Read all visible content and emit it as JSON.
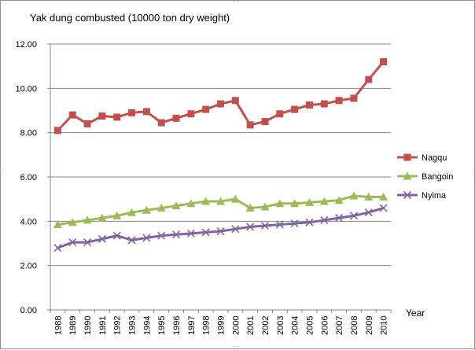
{
  "chart_data": {
    "type": "line",
    "title": "Yak dung combusted (10000 ton dry weight)",
    "xlabel": "Year",
    "ylabel": "",
    "ylim": [
      0,
      12
    ],
    "yticks": [
      "0.00",
      "2.00",
      "4.00",
      "6.00",
      "8.00",
      "10.00",
      "12.00"
    ],
    "ytick_values": [
      0,
      2,
      4,
      6,
      8,
      10,
      12
    ],
    "grid": "horizontal",
    "legend_position": "right",
    "categories": [
      "1988",
      "1989",
      "1990",
      "1991",
      "1992",
      "1993",
      "1994",
      "1995",
      "1996",
      "1997",
      "1998",
      "1999",
      "2000",
      "2001",
      "2002",
      "2003",
      "2004",
      "2005",
      "2006",
      "2007",
      "2008",
      "2009",
      "2010"
    ],
    "series": [
      {
        "name": "Nagqu",
        "color": "#c0504d",
        "marker": "square",
        "values": [
          8.1,
          8.8,
          8.4,
          8.75,
          8.7,
          8.9,
          8.95,
          8.45,
          8.65,
          8.85,
          9.05,
          9.3,
          9.45,
          8.35,
          8.5,
          8.85,
          9.05,
          9.25,
          9.3,
          9.45,
          9.55,
          10.4,
          11.2
        ]
      },
      {
        "name": "Bangoin",
        "color": "#9bbb59",
        "marker": "triangle",
        "values": [
          3.85,
          3.95,
          4.05,
          4.15,
          4.25,
          4.4,
          4.5,
          4.6,
          4.7,
          4.8,
          4.9,
          4.9,
          5.0,
          4.6,
          4.65,
          4.8,
          4.8,
          4.85,
          4.9,
          4.95,
          5.15,
          5.1,
          5.1
        ]
      },
      {
        "name": "Nyima",
        "color": "#8064a2",
        "marker": "x",
        "values": [
          2.8,
          3.05,
          3.05,
          3.2,
          3.35,
          3.15,
          3.25,
          3.35,
          3.4,
          3.45,
          3.5,
          3.55,
          3.65,
          3.75,
          3.8,
          3.85,
          3.9,
          3.95,
          4.05,
          4.15,
          4.25,
          4.4,
          4.6
        ]
      }
    ]
  }
}
